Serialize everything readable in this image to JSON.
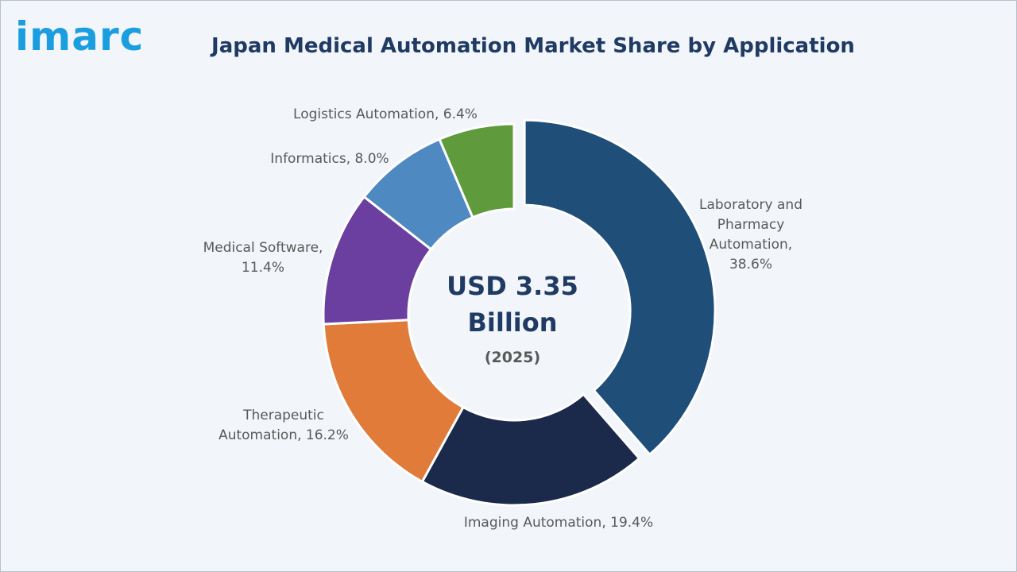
{
  "logo": {
    "text": "imarc"
  },
  "chart_data": {
    "type": "pie",
    "title": "Japan Medical Automation Market Share by Application",
    "center": {
      "line1": "USD 3.35",
      "line2": "Billion",
      "line3": "(2025)"
    },
    "slices": [
      {
        "name": "Laboratory and Pharmacy Automation",
        "value": 38.6,
        "label": [
          "Laboratory and",
          "Pharmacy",
          "Automation,",
          "38.6%"
        ],
        "color": "#1f4e79"
      },
      {
        "name": "Imaging Automation",
        "value": 19.4,
        "label": [
          "Imaging Automation, 19.4%"
        ],
        "color": "#1b2a4a"
      },
      {
        "name": "Therapeutic Automation",
        "value": 16.2,
        "label": [
          "Therapeutic",
          "Automation, 16.2%"
        ],
        "color": "#e07b39"
      },
      {
        "name": "Medical Software",
        "value": 11.4,
        "label": [
          "Medical Software,",
          "11.4%"
        ],
        "color": "#6b3fa0"
      },
      {
        "name": "Informatics",
        "value": 8.0,
        "label": [
          "Informatics, 8.0%"
        ],
        "color": "#4f89c2"
      },
      {
        "name": "Logistics Automation",
        "value": 6.4,
        "label": [
          "Logistics Automation, 6.4%"
        ],
        "color": "#5f9a3c"
      }
    ]
  }
}
